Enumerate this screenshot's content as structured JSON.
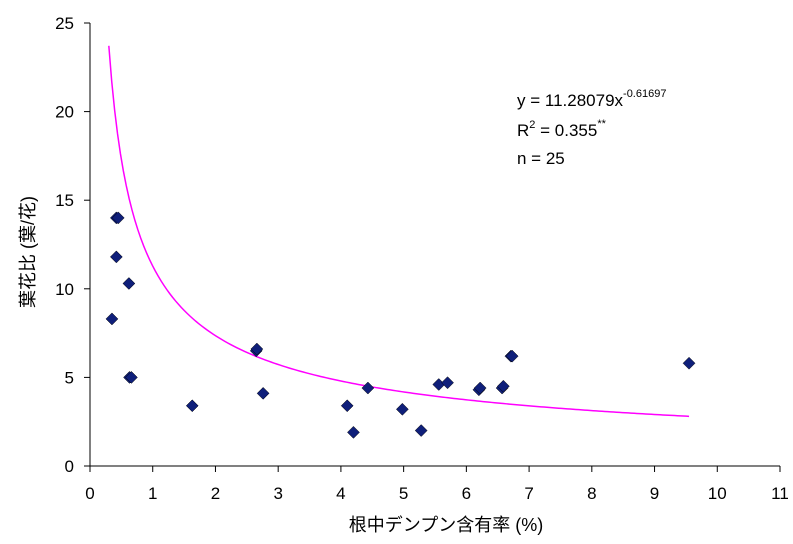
{
  "chart_data": {
    "type": "scatter",
    "xlabel": "根中デンプン含有率 (%)",
    "ylabel": "葉花比 (葉/花)",
    "xlim": [
      0,
      11
    ],
    "ylim": [
      0,
      25
    ],
    "x_ticks": [
      "0",
      "1",
      "2",
      "3",
      "4",
      "5",
      "6",
      "7",
      "8",
      "9",
      "10",
      "11"
    ],
    "y_ticks": [
      "0",
      "5",
      "10",
      "15",
      "20",
      "25"
    ],
    "grid": false,
    "legend": "none",
    "series": [
      {
        "points": [
          [
            0.35,
            8.3
          ],
          [
            0.42,
            14.0
          ],
          [
            0.45,
            14.0
          ],
          [
            0.42,
            11.8
          ],
          [
            0.62,
            10.3
          ],
          [
            0.63,
            5.0
          ],
          [
            0.66,
            5.0
          ],
          [
            1.63,
            3.4
          ],
          [
            2.65,
            6.5
          ],
          [
            2.66,
            6.6
          ],
          [
            2.76,
            4.1
          ],
          [
            4.1,
            3.4
          ],
          [
            4.2,
            1.9
          ],
          [
            4.43,
            4.4
          ],
          [
            4.98,
            3.2
          ],
          [
            5.28,
            2.0
          ],
          [
            5.56,
            4.6
          ],
          [
            5.7,
            4.7
          ],
          [
            6.2,
            4.3
          ],
          [
            6.22,
            4.4
          ],
          [
            6.57,
            4.4
          ],
          [
            6.59,
            4.5
          ],
          [
            6.71,
            6.2
          ],
          [
            6.73,
            6.2
          ],
          [
            9.55,
            5.8
          ]
        ]
      }
    ],
    "fit": {
      "a": 11.28079,
      "b": -0.61697,
      "x_range": [
        0.3,
        9.55
      ],
      "color": "#ff00ff"
    },
    "marker_color": "#0f1f7a",
    "annotations": {
      "equation": "y = 11.28079x",
      "exponent": "-0.61697",
      "r2_label": "R",
      "r2_sup": "2",
      "r2_value": " = 0.355",
      "r2_sig": "**",
      "n": "n = 25"
    }
  }
}
